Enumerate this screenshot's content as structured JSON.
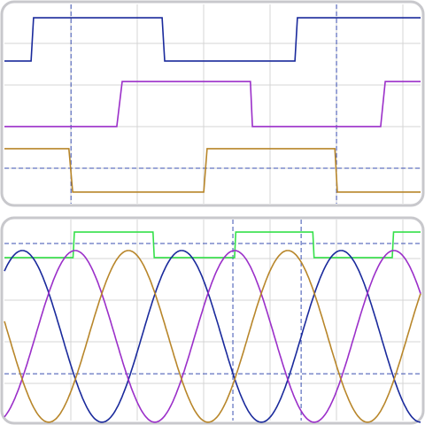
{
  "chart_data": [
    {
      "type": "line",
      "xlim": [
        0,
        100
      ],
      "ylim": [
        0,
        100
      ],
      "cursors": {
        "x": [
          16,
          79.8
        ],
        "y": [
          17.8
        ]
      },
      "series": [
        {
          "color": "#1a2a9c",
          "x": [
            0,
            6.4,
            7,
            37.9,
            38.5,
            69.8,
            70.4,
            100
          ],
          "values": [
            71.6,
            71.6,
            93.3,
            93.3,
            71.6,
            71.6,
            93.3,
            93.3
          ]
        },
        {
          "color": "#9b2fc9",
          "x": [
            0,
            27,
            28.3,
            59.1,
            59.6,
            90.4,
            91.5,
            100
          ],
          "values": [
            38.7,
            38.7,
            61.3,
            61.3,
            38.7,
            38.7,
            61.3,
            61.3
          ]
        },
        {
          "color": "#b8862a",
          "x": [
            0,
            15.5,
            16.4,
            47.9,
            48.7,
            79.4,
            80,
            100
          ],
          "values": [
            27.6,
            27.6,
            5.8,
            5.8,
            27.6,
            27.6,
            5.8,
            5.8
          ]
        }
      ]
    },
    {
      "type": "line",
      "xlim": [
        0,
        100
      ],
      "ylim": [
        0,
        100
      ],
      "cursors": {
        "x": [
          54.9,
          71.3
        ],
        "y": [
          88.1,
          23.3
        ]
      },
      "series": [
        {
          "color": "#35e04a",
          "x": [
            0,
            16.5,
            16.8,
            35.7,
            36,
            55.3,
            55.6,
            74.1,
            74.4,
            93.2,
            93.5,
            100
          ],
          "values": [
            81.1,
            81.1,
            93.8,
            93.8,
            81.1,
            81.1,
            93.8,
            93.8,
            81.1,
            81.1,
            93.8,
            93.8
          ]
        },
        {
          "color": "#1a2a9c",
          "offset": 41.9,
          "amplitude": 42.7,
          "period": 38.3,
          "phase": 4.3
        },
        {
          "color": "#9b2fc9",
          "offset": 41.9,
          "amplitude": 42.7,
          "period": 38.3,
          "phase": 17
        },
        {
          "color": "#b8862a",
          "offset": 41.9,
          "amplitude": 42.7,
          "period": 38.3,
          "phase": 29.8
        }
      ]
    }
  ]
}
